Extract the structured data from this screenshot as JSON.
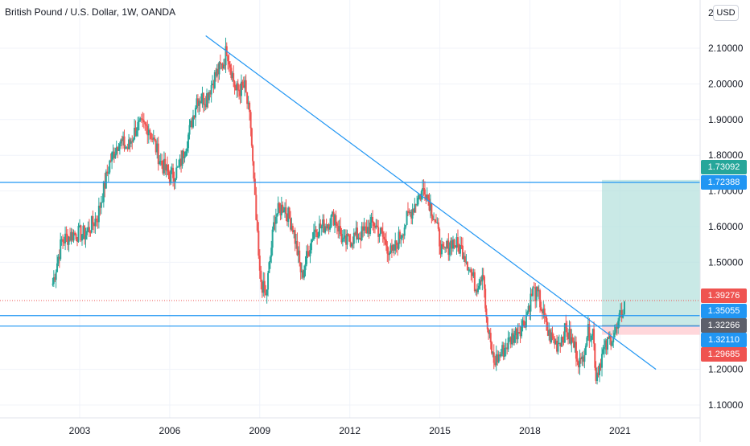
{
  "header": {
    "symbol_title": "British Pound / U.S. Dollar, 1W, OANDA",
    "currency_label": "USD",
    "top_cut_label": "2"
  },
  "colors": {
    "up": "#26a69a",
    "down": "#ef5350",
    "trend_line": "#2196f3",
    "profit_zone": "#b2dfdb",
    "loss_zone": "#ffcdd2",
    "grid": "#f0f3fa",
    "axis_text": "#131722",
    "last_price": "#ef5350"
  },
  "price_axis": {
    "ticks": [
      "2.10000",
      "2.00000",
      "1.90000",
      "1.80000",
      "1.70000",
      "1.60000",
      "1.50000",
      "1.20000",
      "1.10000"
    ],
    "values": [
      2.1,
      2.0,
      1.9,
      1.8,
      1.7,
      1.6,
      1.5,
      1.2,
      1.1
    ]
  },
  "time_axis": {
    "ticks": [
      "2003",
      "2006",
      "2009",
      "2012",
      "2015",
      "2018",
      "2021"
    ],
    "years": [
      2003,
      2006,
      2009,
      2012,
      2015,
      2018,
      2021
    ]
  },
  "price_labels": [
    {
      "id": "tp",
      "text": "1.73092",
      "value": 1.73092,
      "color": "#26a69a"
    },
    {
      "id": "res",
      "text": "1.72388",
      "value": 1.72388,
      "color": "#2196f3"
    },
    {
      "id": "last",
      "text": "1.39276",
      "value": 1.39276,
      "color": "#ef5350"
    },
    {
      "id": "sup1",
      "text": "1.35055",
      "value": 1.35055,
      "color": "#2196f3"
    },
    {
      "id": "entry",
      "text": "1.32266",
      "value": 1.32266,
      "color": "#5d606b"
    },
    {
      "id": "sup2",
      "text": "1.32110",
      "value": 1.3211,
      "color": "#2196f3"
    },
    {
      "id": "sl",
      "text": "1.29685",
      "value": 1.29685,
      "color": "#ef5350"
    }
  ],
  "chart_data": {
    "type": "candlestick",
    "title": "British Pound / U.S. Dollar, 1W, OANDA",
    "y_range": [
      1.05,
      2.2
    ],
    "x_range": [
      2001.0,
      2023.6
    ],
    "anchors": [
      [
        2002.1,
        1.44
      ],
      [
        2002.4,
        1.56
      ],
      [
        2002.8,
        1.58
      ],
      [
        2003.2,
        1.58
      ],
      [
        2003.6,
        1.63
      ],
      [
        2004.0,
        1.78
      ],
      [
        2004.3,
        1.84
      ],
      [
        2004.6,
        1.82
      ],
      [
        2004.9,
        1.88
      ],
      [
        2005.3,
        1.88
      ],
      [
        2005.7,
        1.78
      ],
      [
        2006.0,
        1.74
      ],
      [
        2006.3,
        1.76
      ],
      [
        2006.7,
        1.88
      ],
      [
        2006.9,
        1.96
      ],
      [
        2007.2,
        1.96
      ],
      [
        2007.5,
        2.02
      ],
      [
        2007.8,
        2.06
      ],
      [
        2007.9,
        2.1
      ],
      [
        2008.2,
        1.98
      ],
      [
        2008.5,
        1.99
      ],
      [
        2008.7,
        1.88
      ],
      [
        2008.8,
        1.72
      ],
      [
        2009.0,
        1.46
      ],
      [
        2009.2,
        1.4
      ],
      [
        2009.5,
        1.63
      ],
      [
        2009.8,
        1.66
      ],
      [
        2010.1,
        1.6
      ],
      [
        2010.4,
        1.46
      ],
      [
        2010.8,
        1.59
      ],
      [
        2011.1,
        1.6
      ],
      [
        2011.5,
        1.63
      ],
      [
        2011.8,
        1.55
      ],
      [
        2012.1,
        1.57
      ],
      [
        2012.4,
        1.58
      ],
      [
        2012.8,
        1.61
      ],
      [
        2013.1,
        1.57
      ],
      [
        2013.4,
        1.52
      ],
      [
        2013.9,
        1.62
      ],
      [
        2014.2,
        1.67
      ],
      [
        2014.5,
        1.71
      ],
      [
        2014.8,
        1.63
      ],
      [
        2015.1,
        1.52
      ],
      [
        2015.4,
        1.56
      ],
      [
        2015.8,
        1.53
      ],
      [
        2016.2,
        1.43
      ],
      [
        2016.45,
        1.48
      ],
      [
        2016.55,
        1.33
      ],
      [
        2016.8,
        1.22
      ],
      [
        2017.0,
        1.24
      ],
      [
        2017.4,
        1.29
      ],
      [
        2017.8,
        1.33
      ],
      [
        2018.1,
        1.42
      ],
      [
        2018.3,
        1.4
      ],
      [
        2018.6,
        1.3
      ],
      [
        2018.9,
        1.27
      ],
      [
        2019.2,
        1.31
      ],
      [
        2019.5,
        1.26
      ],
      [
        2019.7,
        1.21
      ],
      [
        2019.9,
        1.3
      ],
      [
        2020.1,
        1.31
      ],
      [
        2020.2,
        1.18
      ],
      [
        2020.4,
        1.24
      ],
      [
        2020.7,
        1.29
      ],
      [
        2020.9,
        1.31
      ],
      [
        2021.1,
        1.37
      ],
      [
        2021.15,
        1.39
      ]
    ],
    "trend_line": {
      "x1": 2007.2,
      "y1": 2.135,
      "x2": 2022.2,
      "y2": 1.2
    },
    "horizontal_lines": [
      1.72388,
      1.35055,
      1.3211
    ],
    "last_price": 1.39276,
    "position": {
      "entry": 1.32266,
      "target": 1.73092,
      "stop": 1.29685,
      "x_start": 2020.4,
      "x_end": 2023.6
    }
  }
}
